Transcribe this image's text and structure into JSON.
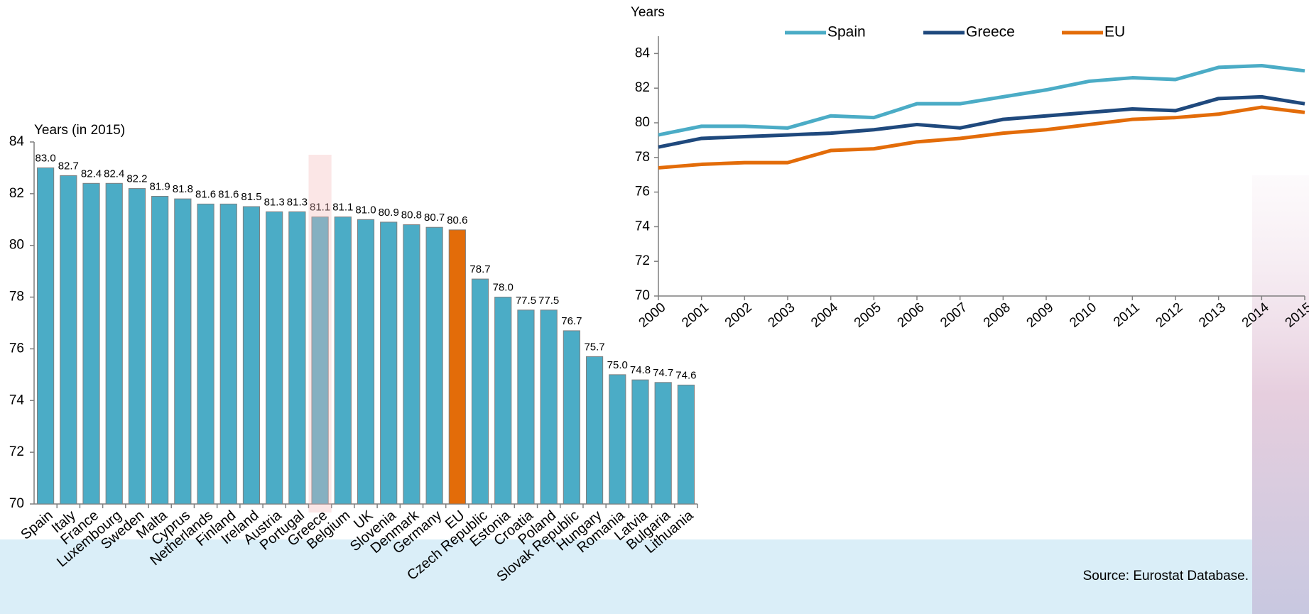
{
  "chart_data": [
    {
      "type": "bar",
      "ylabel": "Years (in 2015)",
      "categories": [
        "Spain",
        "Italy",
        "France",
        "Luxembourg",
        "Sweden",
        "Malta",
        "Cyprus",
        "Netherlands",
        "Finland",
        "Ireland",
        "Austria",
        "Portugal",
        "Greece",
        "Belgium",
        "UK",
        "Slovenia",
        "Denmark",
        "Germany",
        "EU",
        "Czech Republic",
        "Estonia",
        "Croatia",
        "Poland",
        "Slovak Republic",
        "Hungary",
        "Romania",
        "Latvia",
        "Bulgaria",
        "Lithuania"
      ],
      "values": [
        83.0,
        82.7,
        82.4,
        82.4,
        82.2,
        81.9,
        81.8,
        81.6,
        81.6,
        81.5,
        81.3,
        81.3,
        81.1,
        81.1,
        81.0,
        80.9,
        80.8,
        80.7,
        80.6,
        78.7,
        78.0,
        77.5,
        77.5,
        76.7,
        75.7,
        75.0,
        74.8,
        74.7,
        74.6
      ],
      "value_labels": [
        "83.0",
        "82.7",
        "82.4",
        "82.4",
        "82.2",
        "81.9",
        "81.8",
        "81.6",
        "81.6",
        "81.5",
        "81.3",
        "81.3",
        "81.1",
        "81.1",
        "81.0",
        "80.9",
        "80.8",
        "80.7",
        "80.6",
        "78.7",
        "78.0",
        "77.5",
        "77.5",
        "76.7",
        "75.7",
        "75.0",
        "74.8",
        "74.7",
        "74.6"
      ],
      "color": "#4bacc6",
      "colors": {
        "EU": "#e36c09"
      },
      "highlight_category": "Greece",
      "ylim": [
        70,
        84
      ],
      "yticks": [
        70,
        72,
        74,
        76,
        78,
        80,
        82,
        84
      ]
    },
    {
      "type": "line",
      "ylabel": "Years",
      "legend": "top",
      "x": [
        2000,
        2001,
        2002,
        2003,
        2004,
        2005,
        2006,
        2007,
        2008,
        2009,
        2010,
        2011,
        2012,
        2013,
        2014,
        2015
      ],
      "xlim": [
        2000,
        2015
      ],
      "xticks": [
        2000,
        2001,
        2002,
        2003,
        2004,
        2005,
        2006,
        2007,
        2008,
        2009,
        2010,
        2011,
        2012,
        2013,
        2014,
        2015
      ],
      "ylim": [
        70,
        85
      ],
      "yticks": [
        70,
        72,
        74,
        76,
        78,
        80,
        82,
        84
      ],
      "series": [
        {
          "name": "Spain",
          "color": "#4bacc6",
          "values": [
            79.3,
            79.8,
            79.8,
            79.7,
            80.4,
            80.3,
            81.1,
            81.1,
            81.5,
            81.9,
            82.4,
            82.6,
            82.5,
            83.2,
            83.3,
            83.0
          ]
        },
        {
          "name": "Greece",
          "color": "#1f497d",
          "values": [
            78.6,
            79.1,
            79.2,
            79.3,
            79.4,
            79.6,
            79.9,
            79.7,
            80.2,
            80.4,
            80.6,
            80.8,
            80.7,
            81.4,
            81.5,
            81.1
          ]
        },
        {
          "name": "EU",
          "color": "#e36c09",
          "values": [
            77.4,
            77.6,
            77.7,
            77.7,
            78.4,
            78.5,
            78.9,
            79.1,
            79.4,
            79.6,
            79.9,
            80.2,
            80.3,
            80.5,
            80.9,
            80.6
          ]
        }
      ]
    }
  ],
  "source": "Source: Eurostat Database."
}
